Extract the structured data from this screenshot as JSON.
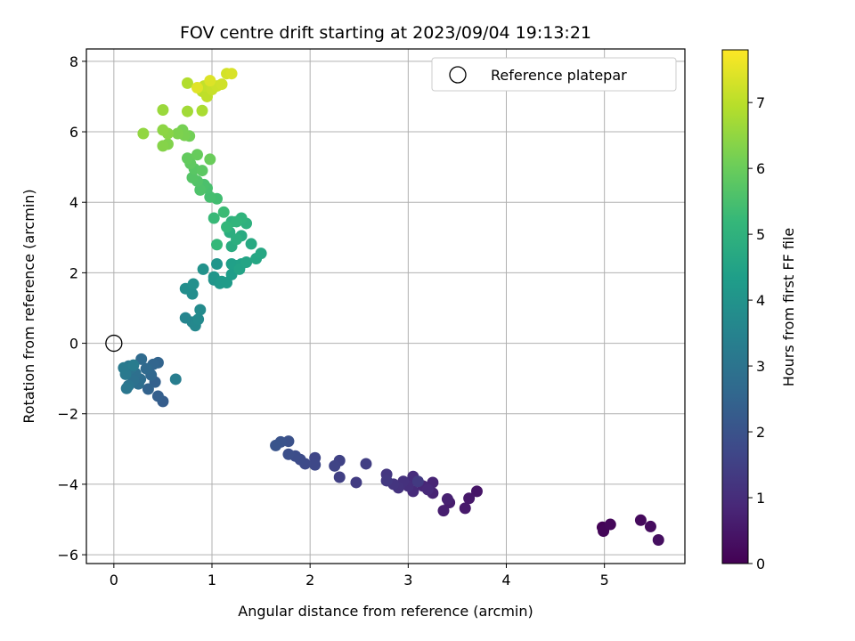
{
  "chart_data": {
    "type": "scatter",
    "title": "FOV centre drift starting at 2023/09/04 19:13:21",
    "xlabel": "Angular distance from reference (arcmin)",
    "ylabel": "Rotation from reference (arcmin)",
    "xlim": [
      -0.28,
      5.82
    ],
    "ylim": [
      -6.25,
      8.35
    ],
    "xticks": [
      0,
      1,
      2,
      3,
      4,
      5
    ],
    "yticks": [
      -6,
      -4,
      -2,
      0,
      2,
      4,
      6,
      8
    ],
    "grid": true,
    "legend": {
      "placement": "top-right",
      "entries": [
        "Reference platepar"
      ]
    },
    "reference_point": {
      "x": 0,
      "y": 0,
      "label": "Reference platepar"
    },
    "colorbar": {
      "label": "Hours from first FF file",
      "colormap": "viridis",
      "range": [
        0,
        7.8
      ],
      "ticks": [
        0,
        1,
        2,
        3,
        4,
        5,
        6,
        7
      ]
    },
    "colors": {
      "viridis": [
        "#440154",
        "#482878",
        "#3e4989",
        "#31688e",
        "#26828e",
        "#1f9e89",
        "#35b779",
        "#6ece58",
        "#b5de2b",
        "#fde725"
      ],
      "axes": "#000000",
      "grid": "#b0b0b0"
    },
    "points": [
      [
        4.98,
        -5.22,
        0.05
      ],
      [
        4.99,
        -5.33,
        0.1
      ],
      [
        5.06,
        -5.14,
        0.15
      ],
      [
        5.37,
        -5.02,
        0.2
      ],
      [
        5.47,
        -5.2,
        0.25
      ],
      [
        5.55,
        -5.58,
        0.3
      ],
      [
        3.7,
        -4.2,
        0.45
      ],
      [
        3.62,
        -4.4,
        0.5
      ],
      [
        3.58,
        -4.68,
        0.55
      ],
      [
        3.42,
        -4.52,
        0.6
      ],
      [
        3.36,
        -4.75,
        0.65
      ],
      [
        3.4,
        -4.42,
        0.7
      ],
      [
        3.25,
        -4.25,
        0.75
      ],
      [
        3.25,
        -3.95,
        0.8
      ],
      [
        3.15,
        -4.05,
        0.85
      ],
      [
        3.2,
        -4.15,
        0.9
      ],
      [
        3.05,
        -4.2,
        0.95
      ],
      [
        3.05,
        -3.78,
        1.0
      ],
      [
        3.0,
        -4.05,
        1.05
      ],
      [
        2.95,
        -3.92,
        1.1
      ],
      [
        2.9,
        -4.1,
        1.15
      ],
      [
        2.85,
        -4.0,
        1.2
      ],
      [
        2.78,
        -3.72,
        1.25
      ],
      [
        2.78,
        -3.9,
        1.3
      ],
      [
        3.1,
        -3.92,
        1.35
      ],
      [
        2.47,
        -3.95,
        1.4
      ],
      [
        2.57,
        -3.42,
        1.45
      ],
      [
        2.3,
        -3.8,
        1.5
      ],
      [
        2.3,
        -3.33,
        1.55
      ],
      [
        2.25,
        -3.48,
        1.6
      ],
      [
        2.05,
        -3.25,
        1.65
      ],
      [
        2.05,
        -3.45,
        1.7
      ],
      [
        1.95,
        -3.42,
        1.75
      ],
      [
        1.9,
        -3.3,
        1.8
      ],
      [
        1.85,
        -3.2,
        1.85
      ],
      [
        1.78,
        -3.15,
        1.9
      ],
      [
        1.78,
        -2.78,
        1.95
      ],
      [
        1.7,
        -2.8,
        2.0
      ],
      [
        1.65,
        -2.9,
        2.05
      ],
      [
        0.5,
        -1.65,
        2.3
      ],
      [
        0.45,
        -1.5,
        2.35
      ],
      [
        0.42,
        -1.1,
        2.4
      ],
      [
        0.35,
        -1.3,
        2.45
      ],
      [
        0.45,
        -0.55,
        2.5
      ],
      [
        0.4,
        -0.6,
        2.55
      ],
      [
        0.38,
        -0.9,
        2.6
      ],
      [
        0.33,
        -0.72,
        2.65
      ],
      [
        0.28,
        -0.45,
        2.7
      ],
      [
        0.27,
        -1.02,
        2.75
      ],
      [
        0.25,
        -1.15,
        2.8
      ],
      [
        0.22,
        -0.85,
        2.85
      ],
      [
        0.2,
        -1.05,
        2.9
      ],
      [
        0.18,
        -0.7,
        2.95
      ],
      [
        0.15,
        -1.2,
        3.0
      ],
      [
        0.15,
        -0.65,
        3.05
      ],
      [
        0.13,
        -1.28,
        3.1
      ],
      [
        0.12,
        -0.88,
        3.15
      ],
      [
        0.1,
        -0.7,
        3.2
      ],
      [
        0.2,
        -0.62,
        3.25
      ],
      [
        0.63,
        -1.02,
        3.3
      ],
      [
        0.73,
        0.72,
        3.55
      ],
      [
        0.8,
        0.6,
        3.6
      ],
      [
        0.83,
        0.5,
        3.65
      ],
      [
        0.86,
        0.68,
        3.7
      ],
      [
        0.88,
        0.95,
        3.75
      ],
      [
        0.8,
        1.4,
        3.8
      ],
      [
        0.73,
        1.55,
        3.85
      ],
      [
        0.81,
        1.68,
        3.9
      ],
      [
        0.91,
        2.1,
        3.95
      ],
      [
        1.02,
        1.8,
        4.0
      ],
      [
        1.05,
        2.25,
        4.05
      ],
      [
        1.02,
        1.88,
        4.1
      ],
      [
        1.08,
        1.7,
        4.15
      ],
      [
        1.1,
        1.75,
        4.2
      ],
      [
        1.15,
        1.72,
        4.25
      ],
      [
        1.2,
        1.95,
        4.3
      ],
      [
        1.25,
        2.2,
        4.35
      ],
      [
        1.2,
        2.25,
        4.4
      ],
      [
        1.3,
        2.25,
        4.45
      ],
      [
        1.28,
        2.1,
        4.5
      ],
      [
        1.35,
        2.3,
        4.55
      ],
      [
        1.45,
        2.4,
        4.6
      ],
      [
        1.5,
        2.55,
        4.65
      ],
      [
        1.4,
        2.82,
        4.7
      ],
      [
        1.3,
        3.05,
        4.75
      ],
      [
        1.2,
        2.75,
        4.8
      ],
      [
        1.18,
        3.15,
        4.85
      ],
      [
        1.25,
        2.95,
        4.9
      ],
      [
        1.35,
        3.4,
        4.95
      ],
      [
        1.2,
        3.45,
        5.0
      ],
      [
        1.3,
        3.55,
        5.05
      ],
      [
        1.25,
        3.45,
        5.1
      ],
      [
        1.15,
        3.3,
        5.15
      ],
      [
        1.05,
        2.8,
        5.2
      ],
      [
        1.02,
        3.55,
        5.25
      ],
      [
        1.12,
        3.72,
        5.3
      ],
      [
        1.05,
        4.1,
        5.4
      ],
      [
        0.98,
        4.15,
        5.45
      ],
      [
        0.95,
        4.4,
        5.5
      ],
      [
        0.92,
        4.5,
        5.55
      ],
      [
        0.88,
        4.35,
        5.6
      ],
      [
        0.85,
        4.6,
        5.65
      ],
      [
        0.8,
        4.7,
        5.7
      ],
      [
        0.82,
        4.95,
        5.75
      ],
      [
        0.9,
        4.9,
        5.8
      ],
      [
        0.78,
        5.1,
        5.85
      ],
      [
        0.75,
        5.25,
        5.9
      ],
      [
        0.85,
        5.35,
        5.95
      ],
      [
        0.98,
        5.22,
        6.0
      ],
      [
        0.77,
        5.88,
        6.1
      ],
      [
        0.7,
        6.05,
        6.15
      ],
      [
        0.72,
        5.9,
        6.2
      ],
      [
        0.65,
        5.95,
        6.25
      ],
      [
        0.55,
        5.65,
        6.3
      ],
      [
        0.5,
        5.6,
        6.35
      ],
      [
        0.55,
        5.95,
        6.4
      ],
      [
        0.5,
        6.05,
        6.45
      ],
      [
        0.3,
        5.95,
        6.5
      ],
      [
        0.5,
        6.62,
        6.6
      ],
      [
        0.75,
        6.58,
        6.7
      ],
      [
        0.9,
        6.6,
        6.8
      ],
      [
        0.75,
        7.38,
        6.9
      ],
      [
        0.9,
        7.15,
        7.0
      ],
      [
        0.95,
        7.0,
        7.05
      ],
      [
        0.92,
        7.3,
        7.1
      ],
      [
        1.0,
        7.2,
        7.15
      ],
      [
        1.05,
        7.3,
        7.2
      ],
      [
        1.1,
        7.35,
        7.25
      ],
      [
        1.15,
        7.65,
        7.3
      ],
      [
        1.2,
        7.65,
        7.35
      ],
      [
        0.98,
        7.45,
        7.4
      ],
      [
        0.85,
        7.25,
        7.45
      ]
    ]
  }
}
